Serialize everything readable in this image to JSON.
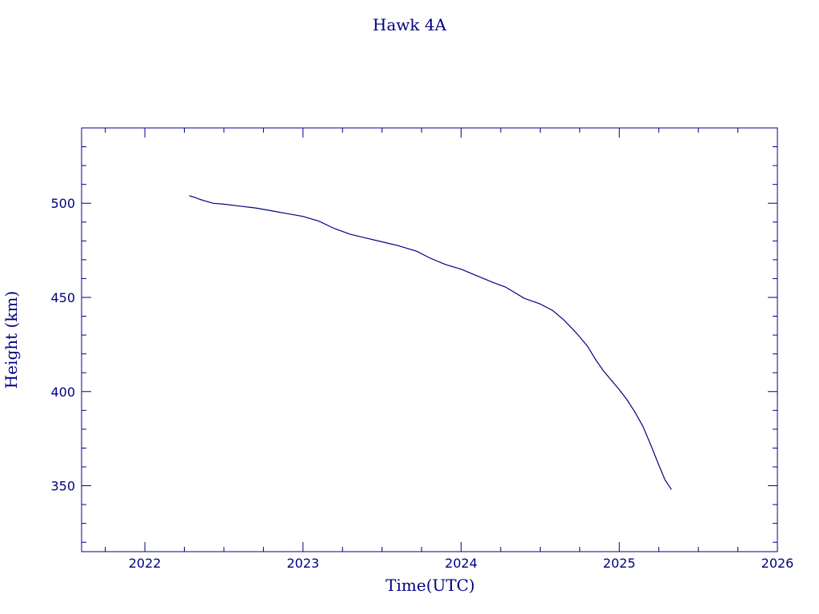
{
  "chart_data": {
    "type": "line",
    "title": "Hawk 4A",
    "xlabel": "Time(UTC)",
    "ylabel": "Height (km)",
    "xlim": [
      2021.6,
      2026.0
    ],
    "ylim": [
      315,
      540
    ],
    "xticks": [
      2022,
      2023,
      2024,
      2025,
      2026
    ],
    "xtick_labels": [
      "2022",
      "2023",
      "2024",
      "2025",
      "2026"
    ],
    "yticks": [
      350,
      400,
      450,
      500
    ],
    "ytick_labels": [
      "350",
      "400",
      "450",
      "500"
    ],
    "grid": false,
    "color": "#000080",
    "series": [
      {
        "x": [
          2022.28,
          2022.32,
          2022.35,
          2022.43,
          2022.5,
          2022.6,
          2022.7,
          2022.8,
          2022.9,
          2023.0,
          2023.1,
          2023.2,
          2023.3,
          2023.4,
          2023.5,
          2023.6,
          2023.72,
          2023.8,
          2023.9,
          2024.0,
          2024.1,
          2024.2,
          2024.28,
          2024.33,
          2024.4,
          2024.5,
          2024.58,
          2024.65,
          2024.73,
          2024.8,
          2024.85,
          2024.9,
          2024.95,
          2025.0,
          2025.05,
          2025.1,
          2025.15,
          2025.2,
          2025.25,
          2025.29,
          2025.33
        ],
        "y": [
          504,
          503,
          502,
          500,
          499.5,
          498.5,
          497.5,
          496,
          494.5,
          493,
          490.5,
          486.5,
          483.5,
          481.5,
          479.5,
          477.5,
          474.5,
          471,
          467.5,
          465,
          461.5,
          458,
          455.5,
          453,
          449.5,
          446.5,
          443,
          438,
          431,
          424,
          417,
          411,
          406,
          401,
          395.5,
          389,
          381.5,
          371.5,
          361,
          353,
          348
        ]
      }
    ]
  }
}
